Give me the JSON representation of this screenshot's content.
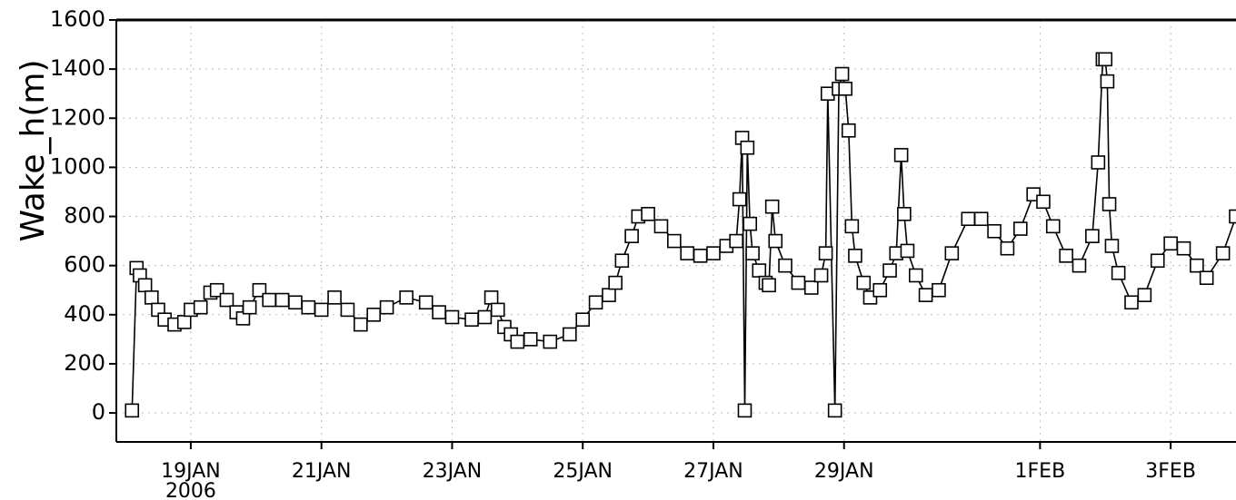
{
  "chart_data": {
    "type": "line",
    "ylabel": "Wake_h(m)",
    "year_label": "2006",
    "x": [
      18.1,
      18.17,
      18.22,
      18.3,
      18.4,
      18.5,
      18.6,
      18.75,
      18.9,
      19.0,
      19.15,
      19.3,
      19.4,
      19.55,
      19.7,
      19.8,
      19.9,
      20.05,
      20.2,
      20.4,
      20.6,
      20.8,
      21.0,
      21.2,
      21.4,
      21.6,
      21.8,
      22.0,
      22.3,
      22.6,
      22.8,
      23.0,
      23.3,
      23.5,
      23.6,
      23.7,
      23.8,
      23.9,
      24.0,
      24.2,
      24.5,
      24.8,
      25.0,
      25.2,
      25.4,
      25.5,
      25.6,
      25.75,
      25.85,
      26.0,
      26.2,
      26.4,
      26.6,
      26.8,
      27.0,
      27.2,
      27.35,
      27.4,
      27.44,
      27.48,
      27.52,
      27.56,
      27.6,
      27.7,
      27.8,
      27.85,
      27.9,
      27.95,
      28.1,
      28.3,
      28.5,
      28.65,
      28.72,
      28.75,
      28.86,
      28.92,
      28.97,
      29.02,
      29.07,
      29.12,
      29.17,
      29.3,
      29.4,
      29.55,
      29.7,
      29.8,
      29.875,
      29.92,
      29.97,
      30.1,
      30.25,
      30.45,
      30.65,
      30.9,
      31.1,
      31.3,
      31.5,
      31.7,
      31.9,
      32.05,
      32.2,
      32.4,
      32.6,
      32.8,
      32.89,
      32.96,
      33.0,
      33.03,
      33.06,
      33.1,
      33.2,
      33.4,
      33.6,
      33.8,
      34.0,
      34.2,
      34.4,
      34.55,
      34.8,
      35.0
    ],
    "series": [
      {
        "color": "#000000",
        "values": [
          10,
          590,
          560,
          520,
          470,
          420,
          380,
          360,
          370,
          420,
          430,
          490,
          500,
          460,
          410,
          385,
          430,
          500,
          460,
          460,
          450,
          430,
          420,
          470,
          420,
          360,
          400,
          430,
          470,
          450,
          410,
          390,
          380,
          390,
          470,
          420,
          350,
          320,
          290,
          300,
          290,
          320,
          380,
          450,
          480,
          530,
          620,
          720,
          800,
          810,
          760,
          700,
          650,
          640,
          650,
          680,
          700,
          870,
          1120,
          10,
          1080,
          770,
          650,
          580,
          530,
          520,
          840,
          700,
          600,
          530,
          510,
          560,
          650,
          1300,
          10,
          1320,
          1380,
          1320,
          1150,
          760,
          640,
          530,
          470,
          500,
          580,
          650,
          1050,
          810,
          660,
          560,
          480,
          500,
          650,
          790,
          790,
          740,
          670,
          750,
          890,
          860,
          760,
          640,
          600,
          720,
          1020,
          1440,
          1440,
          1350,
          850,
          680,
          570,
          450,
          480,
          620,
          690,
          670,
          600,
          550,
          650,
          800
        ]
      }
    ],
    "xlim": [
      17.86,
      35
    ],
    "xticks": [
      {
        "value": 19,
        "label": "19JAN"
      },
      {
        "value": 21,
        "label": "21JAN"
      },
      {
        "value": 23,
        "label": "23JAN"
      },
      {
        "value": 25,
        "label": "25JAN"
      },
      {
        "value": 27,
        "label": "27JAN"
      },
      {
        "value": 29,
        "label": "29JAN"
      },
      {
        "value": 32,
        "label": "1FEB"
      },
      {
        "value": 34,
        "label": "3FEB"
      }
    ],
    "ylim": [
      -118,
      1600
    ],
    "yticks": [
      0,
      200,
      400,
      600,
      800,
      1000,
      1200,
      1400,
      1600
    ],
    "grid": true
  }
}
